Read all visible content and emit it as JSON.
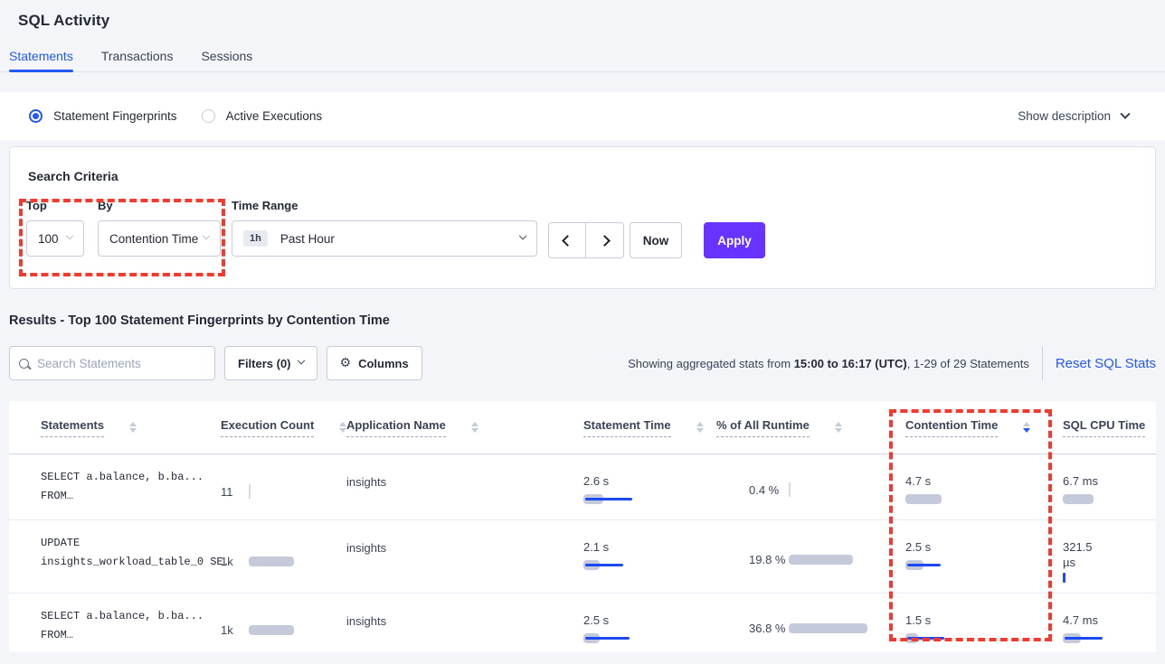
{
  "page": {
    "title": "SQL Activity"
  },
  "tabs": [
    {
      "label": "Statements",
      "active": true
    },
    {
      "label": "Transactions",
      "active": false
    },
    {
      "label": "Sessions",
      "active": false
    }
  ],
  "view_toggle": {
    "options": [
      {
        "label": "Statement Fingerprints",
        "selected": true
      },
      {
        "label": "Active Executions",
        "selected": false
      }
    ],
    "show_description": "Show description"
  },
  "search_criteria": {
    "title": "Search Criteria",
    "top": {
      "label": "Top",
      "value": "100"
    },
    "by": {
      "label": "By",
      "value": "Contention Time"
    },
    "time_range": {
      "label": "Time Range",
      "badge": "1h",
      "value": "Past Hour"
    },
    "now_label": "Now",
    "apply_label": "Apply"
  },
  "results": {
    "heading": "Results - Top 100 Statement Fingerprints by Contention Time",
    "search_placeholder": "Search Statements",
    "filters_label": "Filters (0)",
    "columns_label": "Columns",
    "status": {
      "prefix": "Showing aggregated stats from ",
      "range": "15:00 to 16:17 (UTC)",
      "suffix": ", 1-29 of 29 Statements"
    },
    "reset_label": "Reset SQL Stats"
  },
  "table": {
    "columns": [
      {
        "label": "Statements",
        "sortable": true,
        "sort": null
      },
      {
        "label": "Execution Count",
        "sortable": true,
        "sort": null
      },
      {
        "label": "Application Name",
        "sortable": true,
        "sort": null
      },
      {
        "label": "Statement Time",
        "sortable": true,
        "sort": null
      },
      {
        "label": "% of All Runtime",
        "sortable": true,
        "sort": null
      },
      {
        "label": "Contention Time",
        "sortable": true,
        "sort": "desc"
      },
      {
        "label": "SQL CPU Time",
        "sortable": false,
        "sort": null
      }
    ],
    "rows": [
      {
        "statement_lines": [
          "SELECT a.balance, b.ba...",
          "FROM…"
        ],
        "execution": {
          "value": "11",
          "bar": {
            "type": "tick-gray"
          }
        },
        "app": "insights",
        "statement_time": {
          "value": "2.6 s",
          "bar": {
            "gray": 22,
            "blue": 52
          }
        },
        "pct_runtime": {
          "value": "0.4 %",
          "bar": {
            "type": "tick-gray"
          }
        },
        "contention": {
          "value": "4.7 s",
          "bar": {
            "gray": 40,
            "blue": 0
          }
        },
        "cpu": {
          "value": "6.7 ms",
          "bar": {
            "gray": 34,
            "blue": 0
          }
        }
      },
      {
        "statement_lines": [
          "UPDATE",
          "insights_workload_table_0 SE…"
        ],
        "execution": {
          "value": "1k",
          "bar": {
            "gray": 50,
            "blue": 0
          }
        },
        "app": "insights",
        "statement_time": {
          "value": "2.1 s",
          "bar": {
            "gray": 18,
            "blue": 42
          }
        },
        "pct_runtime": {
          "value": "19.8 %",
          "bar": {
            "gray": 71,
            "blue": 0
          }
        },
        "contention": {
          "value": "2.5 s",
          "bar": {
            "gray": 20,
            "blue": 37
          }
        },
        "cpu": {
          "value": "321.5 µs",
          "bar": {
            "type": "tick-blue"
          }
        }
      },
      {
        "statement_lines": [
          "SELECT a.balance, b.ba...",
          "FROM…"
        ],
        "execution": {
          "value": "1k",
          "bar": {
            "gray": 50,
            "blue": 0
          }
        },
        "app": "insights",
        "statement_time": {
          "value": "2.5 s",
          "bar": {
            "gray": 18,
            "blue": 49
          }
        },
        "pct_runtime": {
          "value": "36.8 %",
          "bar": {
            "gray": 87,
            "blue": 0
          }
        },
        "contention": {
          "value": "1.5 s",
          "bar": {
            "gray": 14,
            "blue": 41
          }
        },
        "cpu": {
          "value": "4.7 ms",
          "bar": {
            "gray": 20,
            "blue": 42
          }
        }
      }
    ]
  },
  "colors": {
    "accent_blue": "#2458f7",
    "bar_gray": "#c4cada",
    "bar_blue": "#1d49f2",
    "highlight_red": "#f5392c",
    "apply_purple": "#6933ff"
  }
}
